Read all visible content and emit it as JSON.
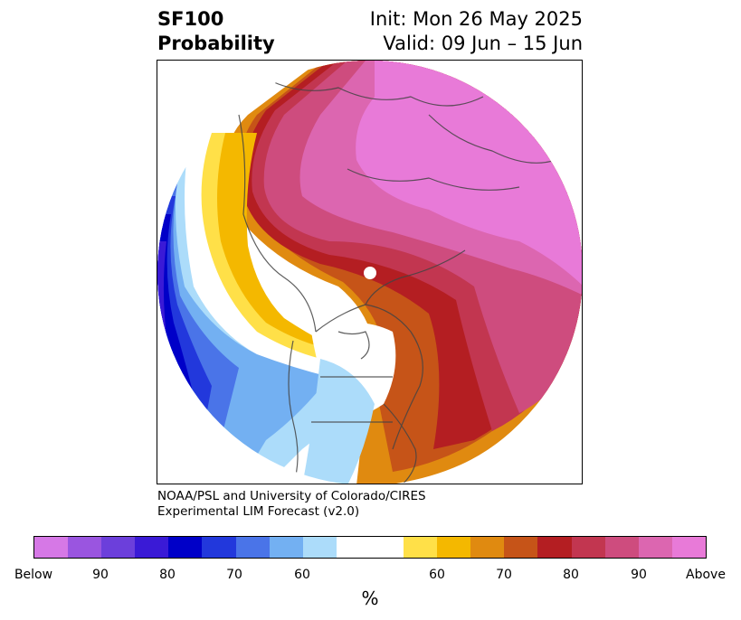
{
  "header": {
    "title_line1": "SF100",
    "title_line2": "Probability",
    "init": "Init: Mon 26 May 2025",
    "valid": "Valid: 09 Jun – 15 Jun"
  },
  "credit": {
    "line1": "NOAA/PSL and University of Colorado/CIRES",
    "line2": "Experimental LIM Forecast (v2.0)"
  },
  "colorbar": {
    "colors": [
      "#d678e6",
      "#9a55e0",
      "#6c3fdb",
      "#3a1ad6",
      "#0000c8",
      "#2238dc",
      "#4a74e8",
      "#73b0f2",
      "#acdcfa",
      "#ffffff",
      "#ffffff",
      "#ffe048",
      "#f4b800",
      "#e08a10",
      "#c65418",
      "#b41e22",
      "#c23650",
      "#ce4c7e",
      "#dc66b0",
      "#e87ad8"
    ],
    "tick_labels": [
      "Below",
      "90",
      "80",
      "70",
      "60",
      "60",
      "70",
      "80",
      "90",
      "Above"
    ],
    "units": "%"
  },
  "map": {
    "projection": "north-polar-stereographic",
    "field": "probability-shading",
    "center_marker": "north-pole-dot"
  }
}
